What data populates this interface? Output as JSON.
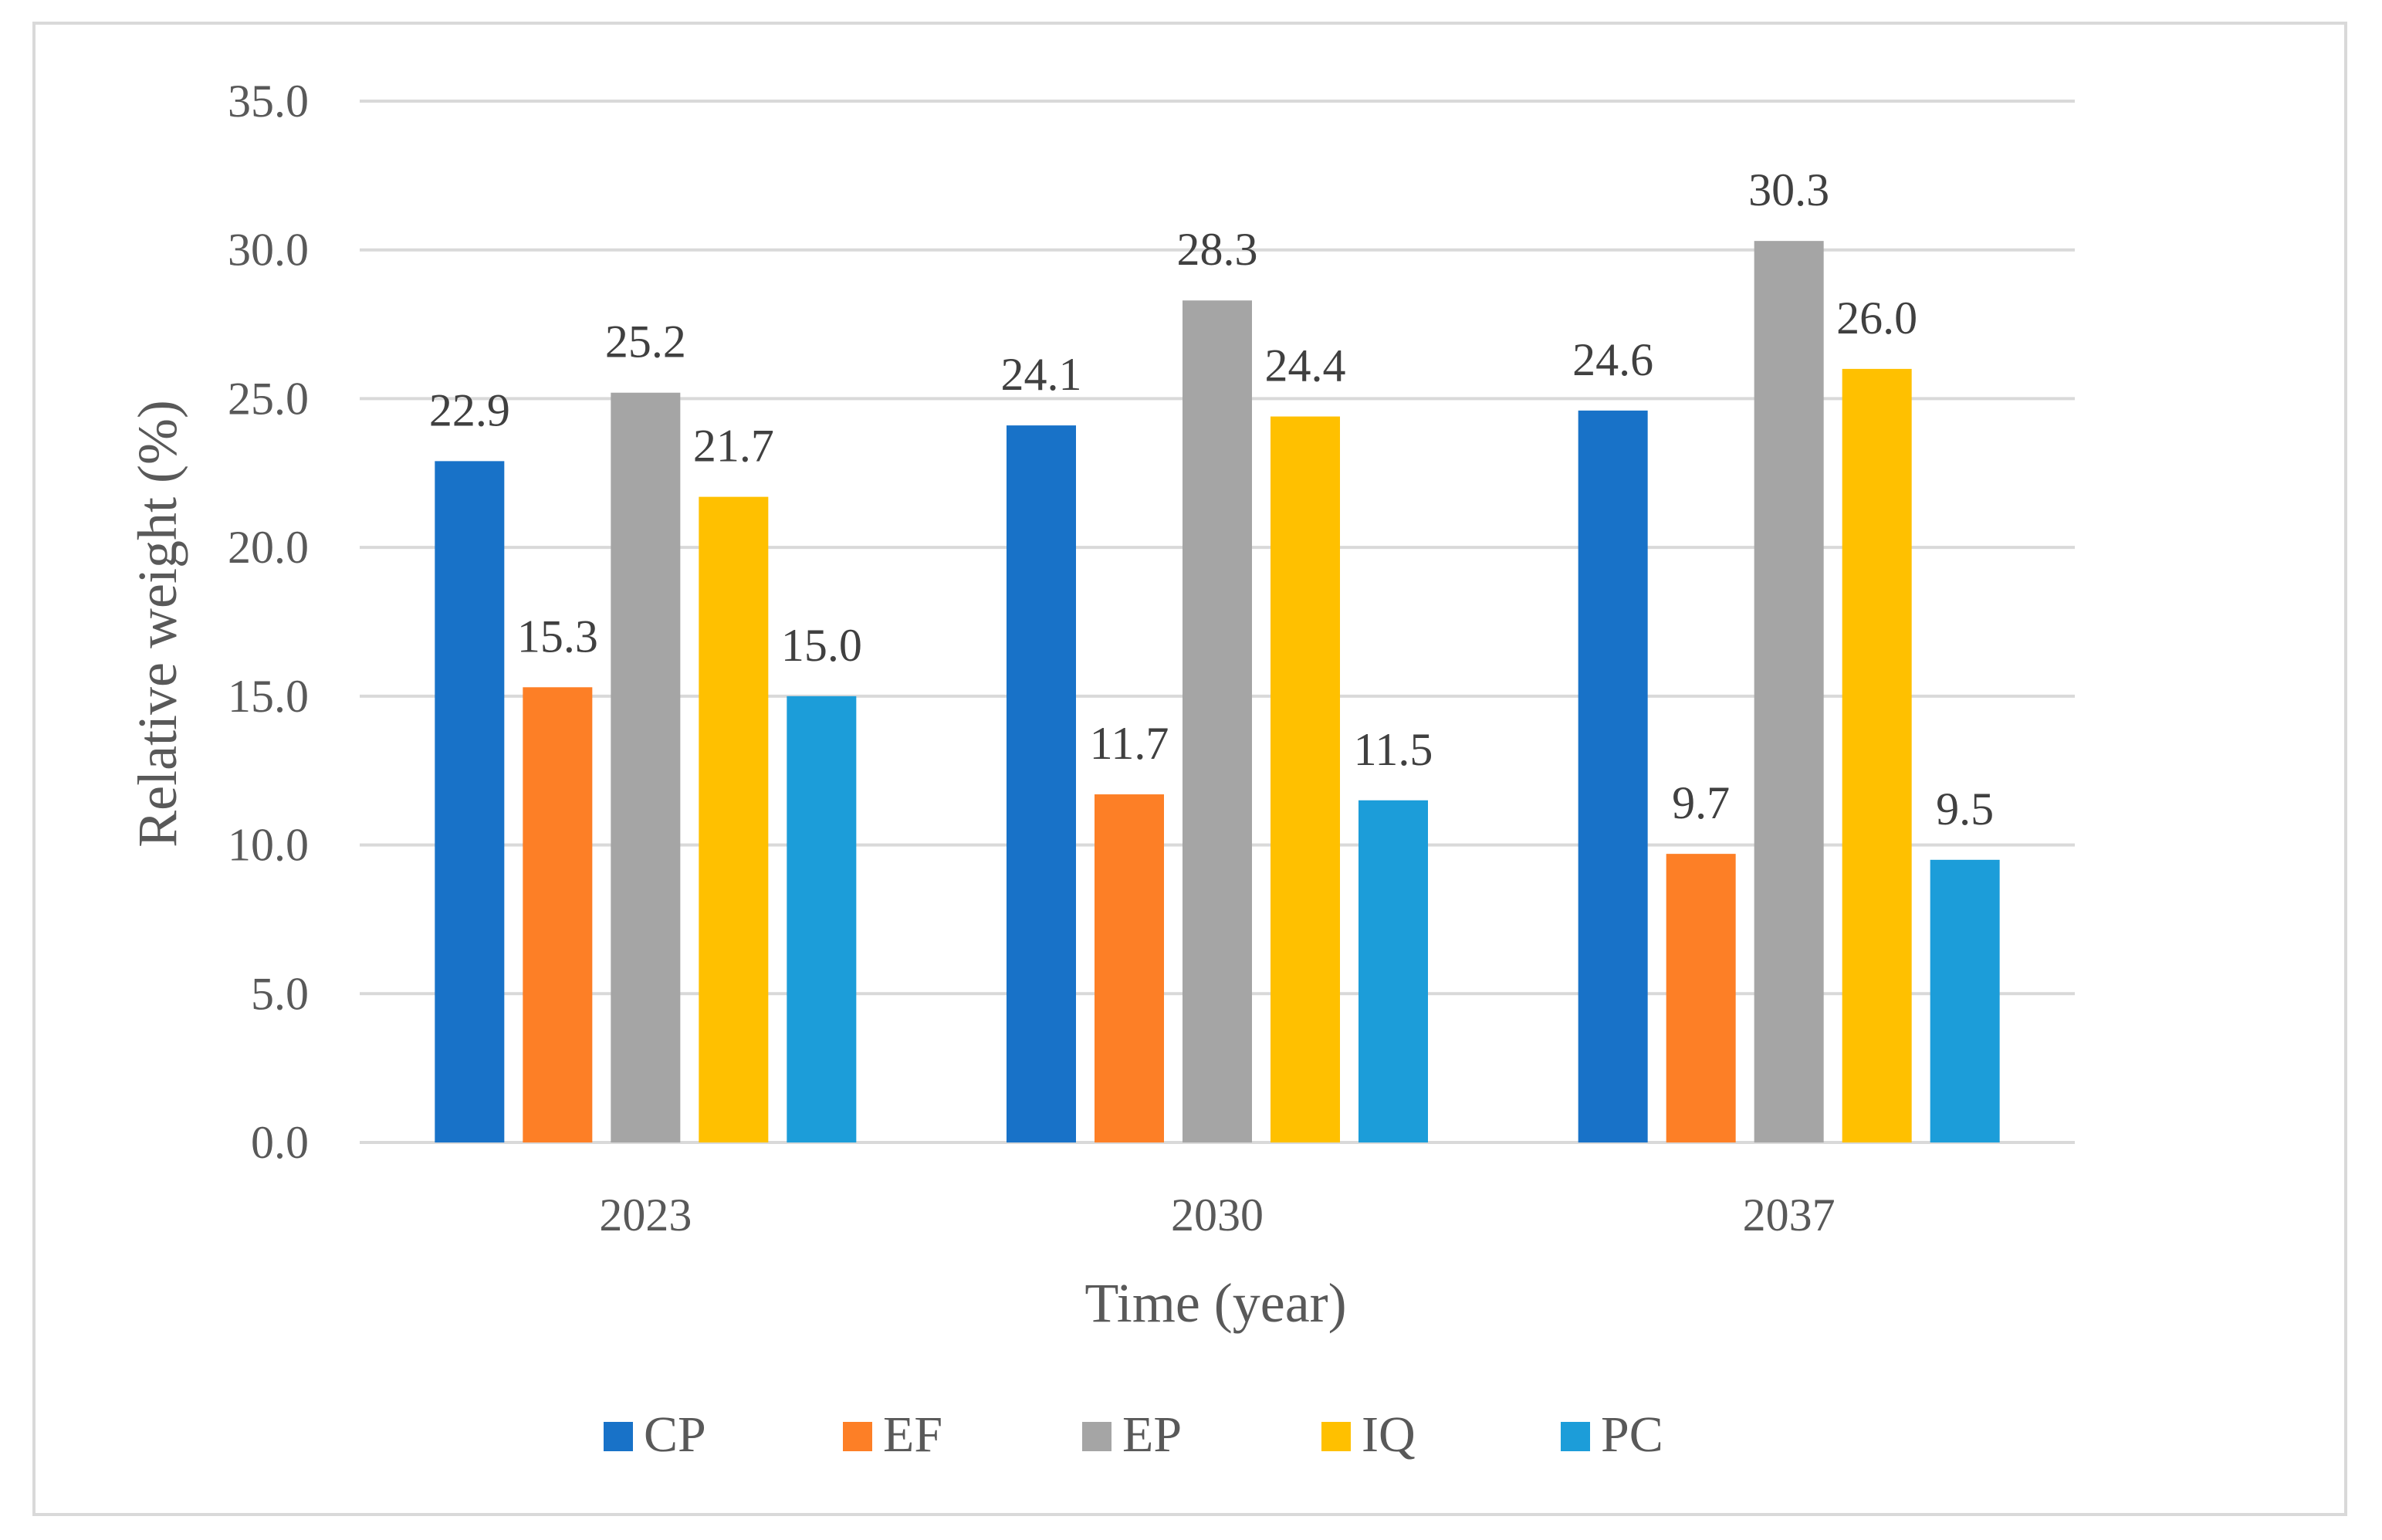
{
  "chart_data": {
    "type": "bar",
    "categories": [
      "2023",
      "2030",
      "2037"
    ],
    "series": [
      {
        "name": "CP",
        "color": "#1872C8",
        "values": [
          22.9,
          24.1,
          24.6
        ]
      },
      {
        "name": "EF",
        "color": "#FD7F26",
        "values": [
          15.3,
          11.7,
          9.7
        ]
      },
      {
        "name": "EP",
        "color": "#A5A5A5",
        "values": [
          25.2,
          28.3,
          30.3
        ]
      },
      {
        "name": "IQ",
        "color": "#FFC000",
        "values": [
          21.7,
          24.4,
          26.0
        ]
      },
      {
        "name": "PC",
        "color": "#1C9DD9",
        "values": [
          15.0,
          11.5,
          9.5
        ]
      }
    ],
    "xlabel": "Time (year)",
    "ylabel": "Relative weight (%)",
    "ylim": [
      0,
      35
    ],
    "yticks": [
      "0.0",
      "5.0",
      "10.0",
      "15.0",
      "20.0",
      "25.0",
      "30.0",
      "35.0"
    ],
    "data_labels": [
      [
        "22.9",
        "24.1",
        "24.6"
      ],
      [
        "15.3",
        "11.7",
        "9.7"
      ],
      [
        "25.2",
        "28.3",
        "30.3"
      ],
      [
        "21.7",
        "24.4",
        "26.0"
      ],
      [
        "15.0",
        "11.5",
        "9.5"
      ]
    ],
    "grid": true,
    "legend": "bottom",
    "gridline_color": "#d9d9d9"
  }
}
